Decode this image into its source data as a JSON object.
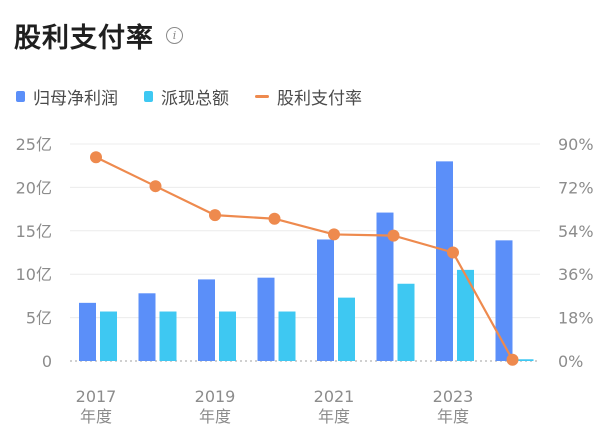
{
  "header": {
    "title": "股利支付率",
    "info_icon": "info-circle-icon"
  },
  "legend": {
    "items": [
      {
        "label": "归母净利润",
        "color": "#5b8ff9",
        "shape": "square"
      },
      {
        "label": "派现总额",
        "color": "#3ec8f2",
        "shape": "square"
      },
      {
        "label": "股利支付率",
        "color": "#ee8a4e",
        "shape": "line"
      }
    ]
  },
  "chart_data": {
    "type": "bar",
    "categories": [
      "2017",
      "2018",
      "2019",
      "2020",
      "2021",
      "2022",
      "2023",
      "2024"
    ],
    "x_tick_labels": [
      {
        "year": "2017",
        "sub": "年度"
      },
      {
        "year": "2019",
        "sub": "年度"
      },
      {
        "year": "2021",
        "sub": "年度"
      },
      {
        "year": "2023",
        "sub": "年度"
      }
    ],
    "left_axis": {
      "ticks": [
        "0",
        "5亿",
        "10亿",
        "15亿",
        "20亿",
        "25亿"
      ],
      "ylim": [
        0,
        25
      ]
    },
    "right_axis": {
      "ticks": [
        "0%",
        "18%",
        "36%",
        "54%",
        "72%",
        "90%"
      ],
      "ylim": [
        0,
        90
      ]
    },
    "series": [
      {
        "name": "归母净利润",
        "type": "bar",
        "axis": "left",
        "color": "#5b8ff9",
        "values": [
          6.7,
          7.8,
          9.4,
          9.6,
          14.0,
          17.1,
          23.0,
          13.9
        ]
      },
      {
        "name": "派现总额",
        "type": "bar",
        "axis": "left",
        "color": "#3ec8f2",
        "values": [
          5.7,
          5.7,
          5.7,
          5.7,
          7.3,
          8.9,
          10.5,
          0.2
        ]
      },
      {
        "name": "股利支付率",
        "type": "line",
        "axis": "right",
        "color": "#ee8a4e",
        "values": [
          84.5,
          72.5,
          60.5,
          59.0,
          52.5,
          52.0,
          45.0,
          0.5
        ]
      }
    ],
    "grid": true,
    "legend_position": "top-left"
  }
}
